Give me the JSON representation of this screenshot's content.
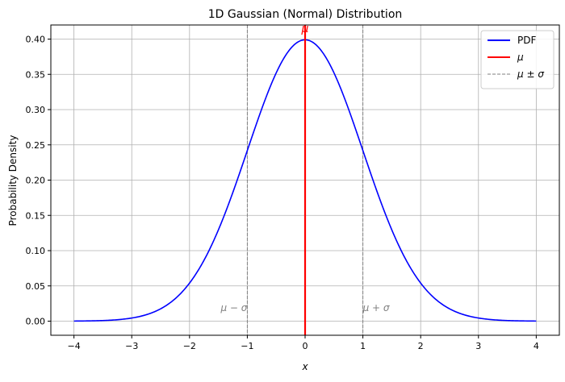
{
  "chart_data": {
    "type": "line",
    "title": "1D Gaussian (Normal) Distribution",
    "xlabel": "x",
    "ylabel": "Probability Density",
    "xlim": [
      -4.4,
      4.4
    ],
    "ylim": [
      -0.02,
      0.42
    ],
    "grid": true,
    "legend_position": "top-right",
    "mean": 0,
    "std": 1,
    "x_ticks": [
      -4,
      -3,
      -2,
      -1,
      0,
      1,
      2,
      3,
      4
    ],
    "x_tick_labels": [
      "−4",
      "−3",
      "−2",
      "−1",
      "0",
      "1",
      "2",
      "3",
      "4"
    ],
    "y_ticks": [
      0.0,
      0.05,
      0.1,
      0.15,
      0.2,
      0.25,
      0.3,
      0.35,
      0.4
    ],
    "y_tick_labels": [
      "0.00",
      "0.05",
      "0.10",
      "0.15",
      "0.20",
      "0.25",
      "0.30",
      "0.35",
      "0.40"
    ],
    "series": [
      {
        "name": "PDF",
        "color": "#0000ff",
        "x": [
          -4,
          -3.5,
          -3,
          -2.5,
          -2,
          -1.75,
          -1.5,
          -1.25,
          -1,
          -0.75,
          -0.5,
          -0.25,
          0,
          0.25,
          0.5,
          0.75,
          1,
          1.25,
          1.5,
          1.75,
          2,
          2.5,
          3,
          3.5,
          4
        ],
        "y": [
          0.0001,
          0.0009,
          0.0044,
          0.0175,
          0.054,
          0.0863,
          0.1295,
          0.1826,
          0.242,
          0.3011,
          0.3521,
          0.3867,
          0.3989,
          0.3867,
          0.3521,
          0.3011,
          0.242,
          0.1826,
          0.1295,
          0.0863,
          0.054,
          0.0175,
          0.0044,
          0.0009,
          0.0001
        ]
      }
    ],
    "vlines": [
      {
        "name": "μ",
        "x": 0,
        "color": "#ff0000",
        "style": "solid"
      },
      {
        "name": "μ ± σ",
        "x": -1,
        "color": "#808080",
        "style": "dashed"
      },
      {
        "name": "μ ± σ",
        "x": 1,
        "color": "#808080",
        "style": "dashed"
      }
    ],
    "annotations": [
      {
        "text": "μ",
        "x": 0,
        "y": 0.41,
        "color": "#ff0000"
      },
      {
        "text": "μ − σ",
        "x": -1,
        "y": 0.01,
        "color": "#808080"
      },
      {
        "text": "μ + σ",
        "x": 1,
        "y": 0.01,
        "color": "#808080"
      }
    ],
    "legend": [
      {
        "label": "PDF",
        "color": "#0000ff",
        "style": "solid"
      },
      {
        "label": "μ",
        "color": "#ff0000",
        "style": "solid"
      },
      {
        "label": "μ ± σ",
        "color": "#808080",
        "style": "dashed"
      }
    ]
  }
}
